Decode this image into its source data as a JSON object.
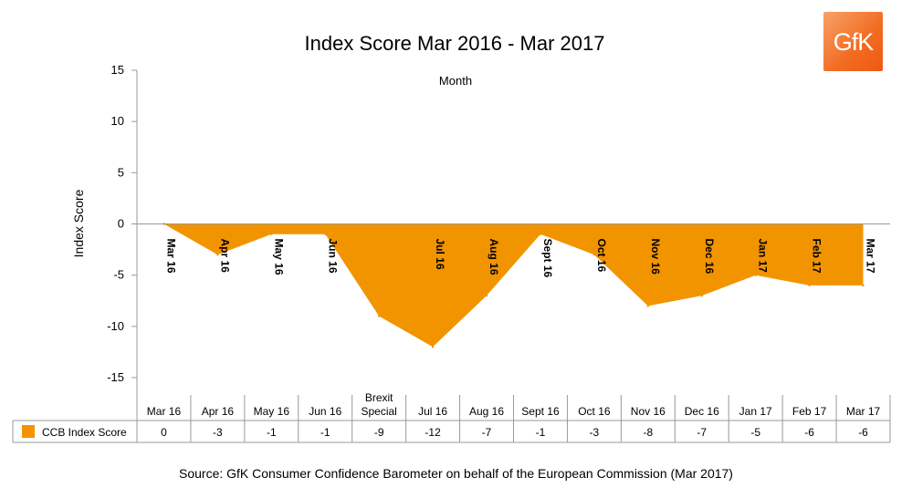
{
  "brand": {
    "logo_text": "GfK",
    "accent": "#F29400",
    "logo_color": "#F26B21"
  },
  "source": "Source: GfK Consumer Confidence Barometer on behalf of the European Commission (Mar 2017)",
  "chart_data": {
    "type": "area",
    "title": "Index Score Mar 2016 - Mar 2017",
    "subtitle": "Month",
    "ylabel": "Index Score",
    "ylim": [
      -15,
      15
    ],
    "yticks": [
      15,
      10,
      5,
      0,
      -5,
      -10,
      -15
    ],
    "grid": false,
    "categories": [
      "Mar 16",
      "Apr 16",
      "May 16",
      "Jun 16",
      "Brexit Special",
      "Jul 16",
      "Aug 16",
      "Sept 16",
      "Oct 16",
      "Nov 16",
      "Dec 16",
      "Jan 17",
      "Feb 17",
      "Mar 17"
    ],
    "axis_category_labels": [
      "Mar 16",
      "Apr 16",
      "May 16",
      "Jun 16",
      "",
      "Jul 16",
      "Aug 16",
      "Sept 16",
      "Oct 16",
      "Nov 16",
      "Dec 16",
      "Jan 17",
      "Feb 17",
      "Mar 17"
    ],
    "series": [
      {
        "name": "CCB Index Score",
        "color": "#F29400",
        "values": [
          0,
          -3,
          -1,
          -1,
          -9,
          -12,
          -7,
          -1,
          -3,
          -8,
          -7,
          -5,
          -6,
          -6
        ]
      }
    ],
    "legend": "data-table"
  }
}
